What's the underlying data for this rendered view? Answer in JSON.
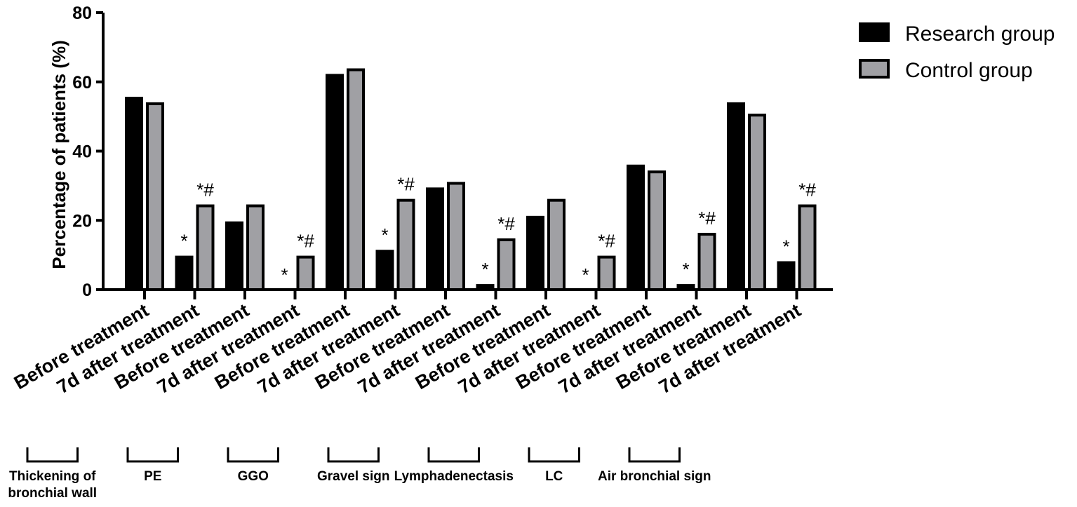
{
  "chart_data": {
    "type": "bar",
    "ylabel": "Percentage of patients (%)",
    "ylim": [
      0,
      80
    ],
    "yticks": [
      0,
      20,
      40,
      60,
      80
    ],
    "categories": [
      "Before treatment",
      "7d after treatment",
      "Before treatment",
      "7d after treatment",
      "Before treatment",
      "7d after treatment",
      "Before treatment",
      "7d after treatment",
      "Before treatment",
      "7d after treatment",
      "Before treatment",
      "7d after treatment",
      "Before treatment",
      "7d after treatment"
    ],
    "groups": [
      {
        "label_lines": [
          "Thickening of",
          "bronchial wall"
        ]
      },
      {
        "label_lines": [
          "PE"
        ]
      },
      {
        "label_lines": [
          "GGO"
        ]
      },
      {
        "label_lines": [
          "Gravel sign"
        ]
      },
      {
        "label_lines": [
          "Lymphadenectasis"
        ]
      },
      {
        "label_lines": [
          "LC"
        ]
      },
      {
        "label_lines": [
          "Air bronchial sign"
        ]
      }
    ],
    "series": [
      {
        "name": "Research group",
        "color": "#000000",
        "values": [
          55.7,
          9.8,
          19.7,
          0,
          62.3,
          11.5,
          29.5,
          1.6,
          21.3,
          0,
          36.1,
          1.6,
          54.1,
          8.2
        ],
        "annotations": [
          "",
          "*",
          "",
          "*",
          "",
          "*",
          "",
          "*",
          "",
          "*",
          "",
          "*",
          "",
          "*"
        ]
      },
      {
        "name": "Control group",
        "color": "#a0a0a4",
        "values": [
          54.1,
          24.6,
          24.6,
          9.8,
          63.9,
          26.2,
          31.1,
          14.8,
          26.2,
          9.8,
          34.4,
          16.4,
          50.8,
          24.6
        ],
        "annotations": [
          "",
          "*#",
          "",
          "*#",
          "",
          "*#",
          "",
          "*#",
          "",
          "*#",
          "",
          "*#",
          "",
          "*#"
        ]
      }
    ],
    "legend_position": "top-right",
    "grid": false
  }
}
